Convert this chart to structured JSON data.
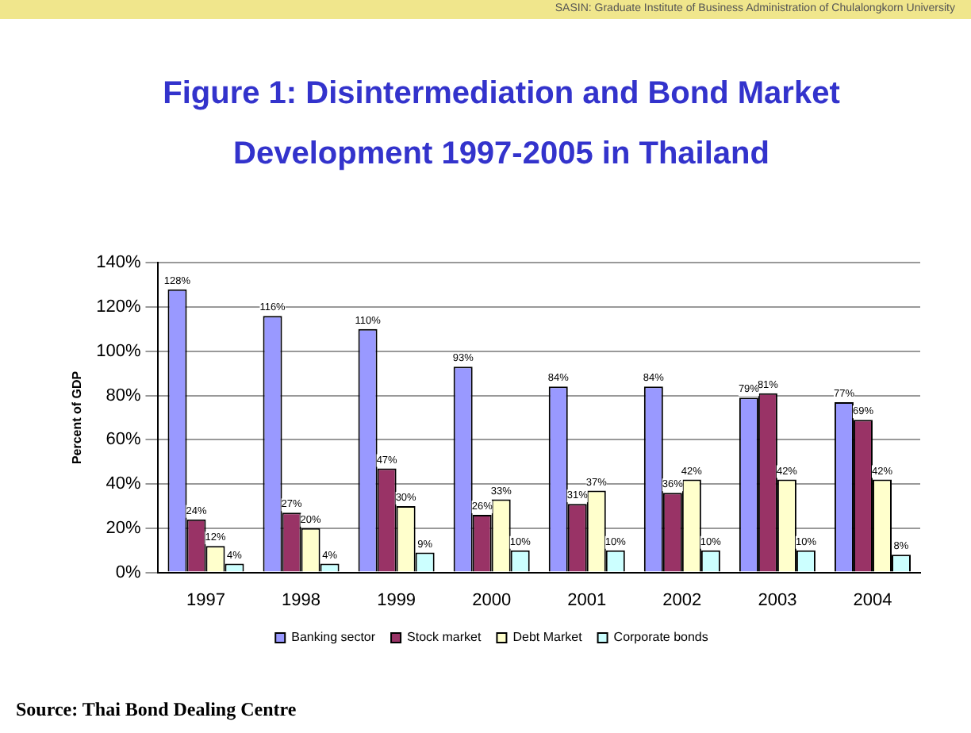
{
  "chart_data": {
    "type": "bar",
    "title": "Figure 1: Disintermediation and Bond Market Development 1997-2005 in Thailand",
    "ylabel": "Percent of GDP",
    "categories": [
      "1997",
      "1998",
      "1999",
      "2000",
      "2001",
      "2002",
      "2003",
      "2004"
    ],
    "series": [
      {
        "name": "Banking sector",
        "color": "#9999ff",
        "values": [
          128,
          116,
          110,
          93,
          84,
          84,
          79,
          77
        ],
        "value_labels": [
          "128%",
          "116%",
          "110%",
          "93%",
          "84%",
          "84%",
          "79%",
          "77%"
        ]
      },
      {
        "name": "Stock market",
        "color": "#993366",
        "values": [
          24,
          27,
          47,
          26,
          31,
          36,
          81,
          69
        ],
        "value_labels": [
          "24%",
          "27%",
          "47%",
          "26%",
          "31%",
          "36%",
          "81%",
          "69%"
        ]
      },
      {
        "name": "Debt Market",
        "color": "#ffffcc",
        "values": [
          12,
          20,
          30,
          33,
          37,
          42,
          42,
          42
        ],
        "value_labels": [
          "12%",
          "20%",
          "30%",
          "33%",
          "37%",
          "42%",
          "42%",
          "42%"
        ]
      },
      {
        "name": "Corporate bonds",
        "color": "#ccffff",
        "values": [
          4,
          4,
          9,
          10,
          10,
          10,
          10,
          8
        ],
        "value_labels": [
          "4%",
          "4%",
          "9%",
          "10%",
          "10%",
          "10%",
          "10%",
          "8%"
        ]
      }
    ],
    "ylim": [
      0,
      140
    ],
    "yticks": [
      {
        "value": 0,
        "label": "0%"
      },
      {
        "value": 20,
        "label": "20%"
      },
      {
        "value": 40,
        "label": "40%"
      },
      {
        "value": 60,
        "label": "60%"
      },
      {
        "value": 80,
        "label": "80%"
      },
      {
        "value": 100,
        "label": "100%"
      },
      {
        "value": 120,
        "label": "120%"
      },
      {
        "value": 140,
        "label": "140%"
      }
    ],
    "grid": "y",
    "legend": "bottom",
    "annotations": [
      "SASIN: Graduate Institute of Business Administration of Chulalongkorn University",
      "Source: Thai Bond Dealing Centre"
    ]
  }
}
